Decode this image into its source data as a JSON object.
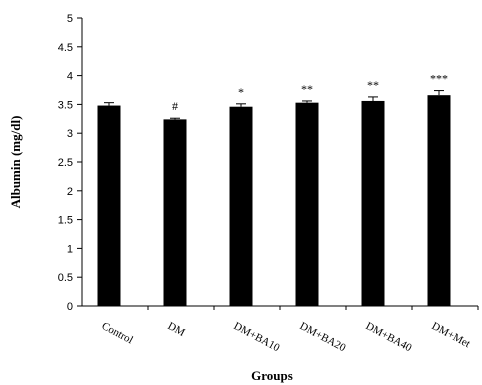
{
  "chart_data": {
    "type": "bar",
    "categories": [
      "Control",
      "DM",
      "DM+BA10",
      "DM+BA20",
      "DM+BA40",
      "DM+Met"
    ],
    "series": [
      {
        "values": [
          3.48,
          3.24,
          3.46,
          3.53,
          3.56,
          3.66
        ],
        "errors": [
          0.05,
          0.02,
          0.05,
          0.03,
          0.07,
          0.08
        ],
        "annotations": [
          "",
          "#",
          "*",
          "**",
          "**",
          "***"
        ],
        "color": "#000000"
      }
    ],
    "title": "",
    "xlabel": "Groups",
    "ylabel": "Albumin (mg/dl)",
    "ylim": [
      0,
      5
    ],
    "yticks": [
      "0",
      "0.5",
      "1",
      "1.5",
      "2",
      "2.5",
      "3",
      "3.5",
      "4",
      "4.5",
      "5"
    ],
    "grid": false,
    "legend": "none"
  }
}
